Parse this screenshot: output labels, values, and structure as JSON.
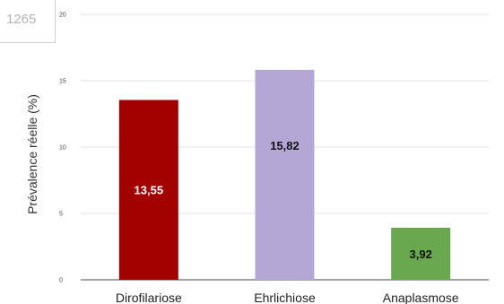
{
  "side_fragment": {
    "text": "1265"
  },
  "chart_data": {
    "type": "bar",
    "ylabel": "Prévalence réelle (%)",
    "xlabel": "",
    "title": "",
    "ylim": [
      0,
      20
    ],
    "yticks": [
      "0",
      "5",
      "10",
      "15",
      "20"
    ],
    "categories": [
      "Dirofilariose",
      "Ehrlichiose",
      "Anaplasmose"
    ],
    "values": [
      13.55,
      15.82,
      3.92
    ],
    "data_labels": [
      "13,55",
      "15,82",
      "3,92"
    ],
    "colors": [
      "#a30000",
      "#b4a7d6",
      "#6aa84f"
    ],
    "label_colors": [
      "#ffffff",
      "#111111",
      "#111111"
    ],
    "label_positions": [
      "center",
      "upper",
      "center"
    ],
    "grid": true,
    "legend": "none"
  }
}
